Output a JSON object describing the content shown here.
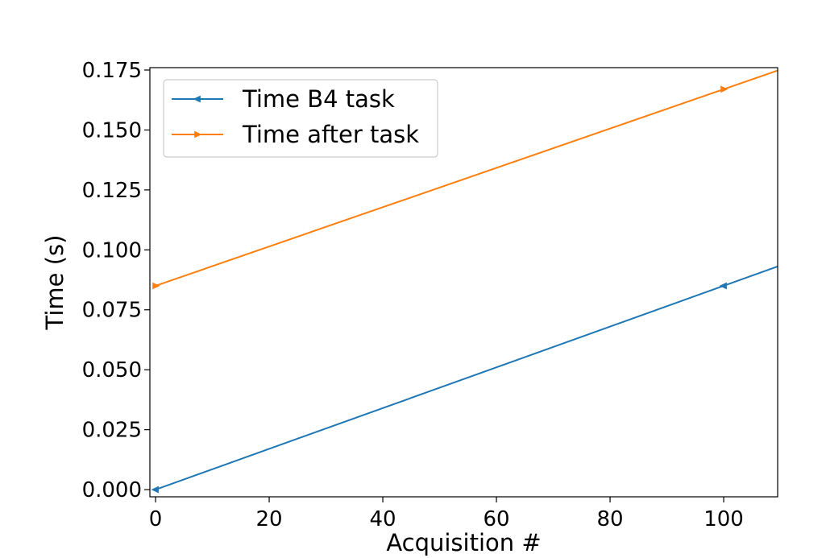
{
  "chart_data": {
    "type": "line",
    "title": "",
    "xlabel": "Acquisition #",
    "ylabel": "Time (s)",
    "xlim": [
      -1,
      109.5
    ],
    "ylim": [
      -0.003,
      0.176
    ],
    "xticks": [
      0,
      20,
      40,
      60,
      80,
      100
    ],
    "xtick_labels": [
      "0",
      "20",
      "40",
      "60",
      "80",
      "100"
    ],
    "yticks": [
      0.0,
      0.025,
      0.05,
      0.075,
      0.1,
      0.125,
      0.15,
      0.175
    ],
    "ytick_labels": [
      "0.000",
      "0.025",
      "0.050",
      "0.075",
      "0.100",
      "0.125",
      "0.150",
      "0.175"
    ],
    "grid": false,
    "legend_position": "top-left",
    "series": [
      {
        "name": "Time B4 task",
        "color": "#1f77b4",
        "marker": "triangle-left",
        "x": [
          0,
          100,
          110
        ],
        "y": [
          0.0,
          0.085,
          0.0935
        ],
        "marker_points": [
          0,
          1
        ]
      },
      {
        "name": "Time after task",
        "color": "#ff7f0e",
        "marker": "triangle-right",
        "x": [
          0,
          100,
          110
        ],
        "y": [
          0.085,
          0.167,
          0.1752
        ],
        "marker_points": [
          0,
          1
        ]
      }
    ]
  }
}
